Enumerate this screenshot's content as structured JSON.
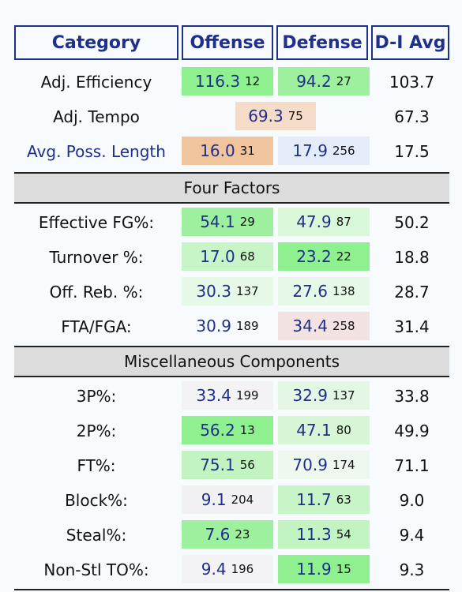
{
  "header": {
    "category": "Category",
    "offense": "Offense",
    "defense": "Defense",
    "d1avg": "D-I Avg"
  },
  "top": [
    {
      "label": "Adj. Efficiency",
      "off": {
        "value": "116.3",
        "rank": "12",
        "bg": "#8ff08f"
      },
      "def": {
        "value": "94.2",
        "rank": "27",
        "bg": "#9ef09e"
      },
      "avg": "103.7"
    },
    {
      "label": "Adj. Tempo",
      "tempo": {
        "value": "69.3",
        "rank": "75",
        "bg": "#f5dcc8"
      },
      "avg": "67.3"
    },
    {
      "label": "Avg. Poss. Length",
      "label_color": "#1e2f8c",
      "off": {
        "value": "16.0",
        "rank": "31",
        "bg": "#f0c49c"
      },
      "def": {
        "value": "17.9",
        "rank": "256",
        "bg": "#e4ecfa"
      },
      "avg": "17.5"
    }
  ],
  "four_factors": {
    "title": "Four Factors",
    "rows": [
      {
        "label": "Effective FG%:",
        "off": {
          "value": "54.1",
          "rank": "29",
          "bg": "#9ef09e"
        },
        "def": {
          "value": "47.9",
          "rank": "87",
          "bg": "#d9f7d9"
        },
        "avg": "50.2"
      },
      {
        "label": "Turnover %:",
        "off": {
          "value": "17.0",
          "rank": "68",
          "bg": "#c7f5c7"
        },
        "def": {
          "value": "23.2",
          "rank": "22",
          "bg": "#8ff08f"
        },
        "avg": "18.8"
      },
      {
        "label": "Off. Reb. %:",
        "off": {
          "value": "30.3",
          "rank": "137",
          "bg": "#e6f8e6"
        },
        "def": {
          "value": "27.6",
          "rank": "138",
          "bg": "#e6f8e6"
        },
        "avg": "28.7"
      },
      {
        "label": "FTA/FGA:",
        "off": {
          "value": "30.9",
          "rank": "189",
          "bg": "#f8fbfe"
        },
        "def": {
          "value": "34.4",
          "rank": "258",
          "bg": "#f2e2e2"
        },
        "avg": "31.4"
      }
    ]
  },
  "misc": {
    "title": "Miscellaneous Components",
    "rows": [
      {
        "label": "3P%:",
        "off": {
          "value": "33.4",
          "rank": "199",
          "bg": "#f3f3f6"
        },
        "def": {
          "value": "32.9",
          "rank": "137",
          "bg": "#e4f7e4"
        },
        "avg": "33.8"
      },
      {
        "label": "2P%:",
        "off": {
          "value": "56.2",
          "rank": "13",
          "bg": "#8ff08f"
        },
        "def": {
          "value": "47.1",
          "rank": "80",
          "bg": "#d6f6d6"
        },
        "avg": "49.9"
      },
      {
        "label": "FT%:",
        "off": {
          "value": "75.1",
          "rank": "56",
          "bg": "#c2f4c2"
        },
        "def": {
          "value": "70.9",
          "rank": "174",
          "bg": "#eef8ee"
        },
        "avg": "71.1"
      },
      {
        "label": "Block%:",
        "off": {
          "value": "9.1",
          "rank": "204",
          "bg": "#f1f1f4"
        },
        "def": {
          "value": "11.7",
          "rank": "63",
          "bg": "#c8f5c8"
        },
        "avg": "9.0"
      },
      {
        "label": "Steal%:",
        "off": {
          "value": "7.6",
          "rank": "23",
          "bg": "#9ef09e"
        },
        "def": {
          "value": "11.3",
          "rank": "54",
          "bg": "#c2f4c2"
        },
        "avg": "9.4"
      },
      {
        "label": "Non-Stl TO%:",
        "off": {
          "value": "9.4",
          "rank": "196",
          "bg": "#f3f3f6"
        },
        "def": {
          "value": "11.9",
          "rank": "15",
          "bg": "#8ff08f"
        },
        "avg": "9.3"
      }
    ]
  }
}
